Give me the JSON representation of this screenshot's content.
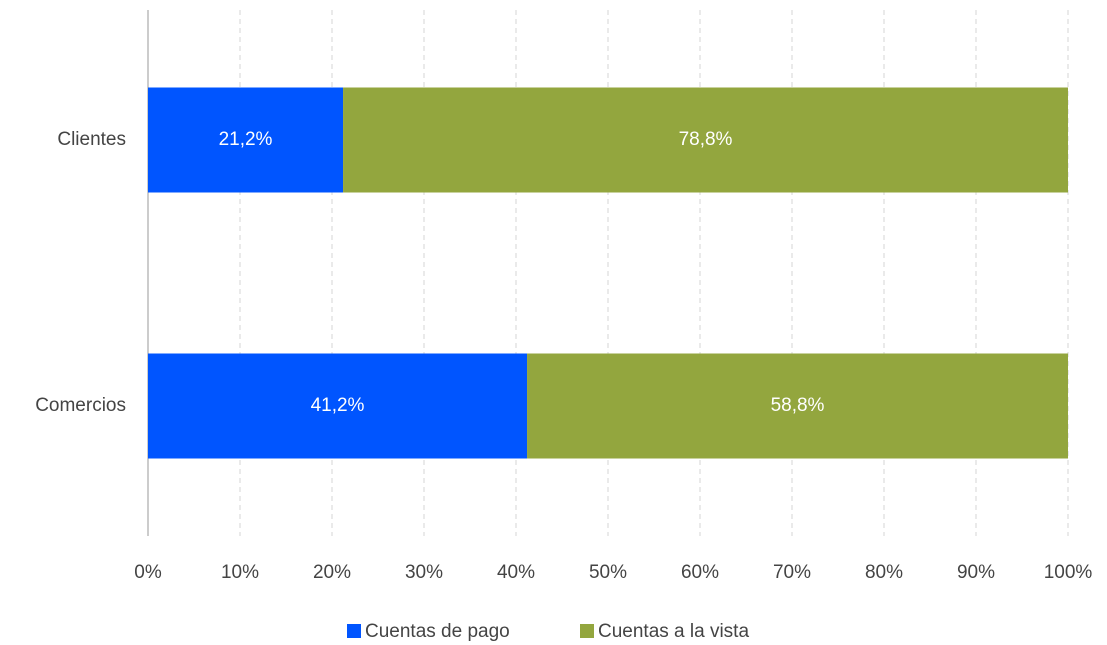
{
  "chart_data": {
    "type": "stacked-barh",
    "categories": [
      "Clientes",
      "Comercios"
    ],
    "series": [
      {
        "name": "Cuentas de pago",
        "color": "#0055ff",
        "values": [
          21.2,
          41.2
        ],
        "value_labels": [
          "21,2%",
          "41,2%"
        ]
      },
      {
        "name": "Cuentas a la vista",
        "color": "#93a63e",
        "values": [
          78.8,
          58.8
        ],
        "value_labels": [
          "78,8%",
          "58,8%"
        ]
      }
    ],
    "xlim": [
      0,
      100
    ],
    "xticks": [
      {
        "value": 0,
        "label": "0%"
      },
      {
        "value": 10,
        "label": "10%"
      },
      {
        "value": 20,
        "label": "20%"
      },
      {
        "value": 30,
        "label": "30%"
      },
      {
        "value": 40,
        "label": "40%"
      },
      {
        "value": 50,
        "label": "50%"
      },
      {
        "value": 60,
        "label": "60%"
      },
      {
        "value": 70,
        "label": "70%"
      },
      {
        "value": 80,
        "label": "80%"
      },
      {
        "value": 90,
        "label": "90%"
      },
      {
        "value": 100,
        "label": "100%"
      }
    ],
    "grid": true,
    "legend": "bottom"
  }
}
